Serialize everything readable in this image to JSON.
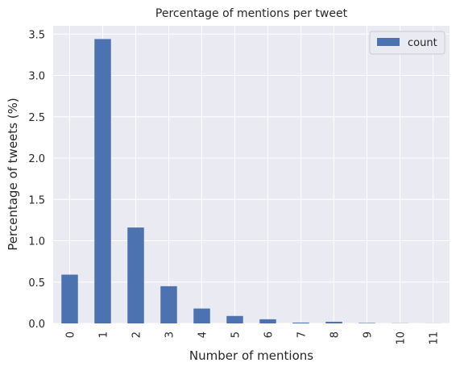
{
  "chart_data": {
    "type": "bar",
    "title": "Percentage of mentions per tweet",
    "xlabel": "Number of mentions",
    "ylabel": "Percentage of tweets (%)",
    "categories": [
      "0",
      "1",
      "2",
      "3",
      "4",
      "5",
      "6",
      "7",
      "8",
      "9",
      "10",
      "11"
    ],
    "series": [
      {
        "name": "count",
        "color": "#4c72b0",
        "values": [
          0.59,
          3.44,
          1.16,
          0.45,
          0.18,
          0.09,
          0.05,
          0.01,
          0.02,
          0.005,
          0.002,
          0.001
        ]
      }
    ],
    "ylim": [
      0,
      3.6
    ],
    "yticks": [
      0.0,
      0.5,
      1.0,
      1.5,
      2.0,
      2.5,
      3.0,
      3.5
    ],
    "ytick_labels": [
      "0.0",
      "0.5",
      "1.0",
      "1.5",
      "2.0",
      "2.5",
      "3.0",
      "3.5"
    ],
    "grid": true,
    "legend_position": "top-right",
    "background_color": "#eaeaf2",
    "grid_color": "#ffffff"
  }
}
